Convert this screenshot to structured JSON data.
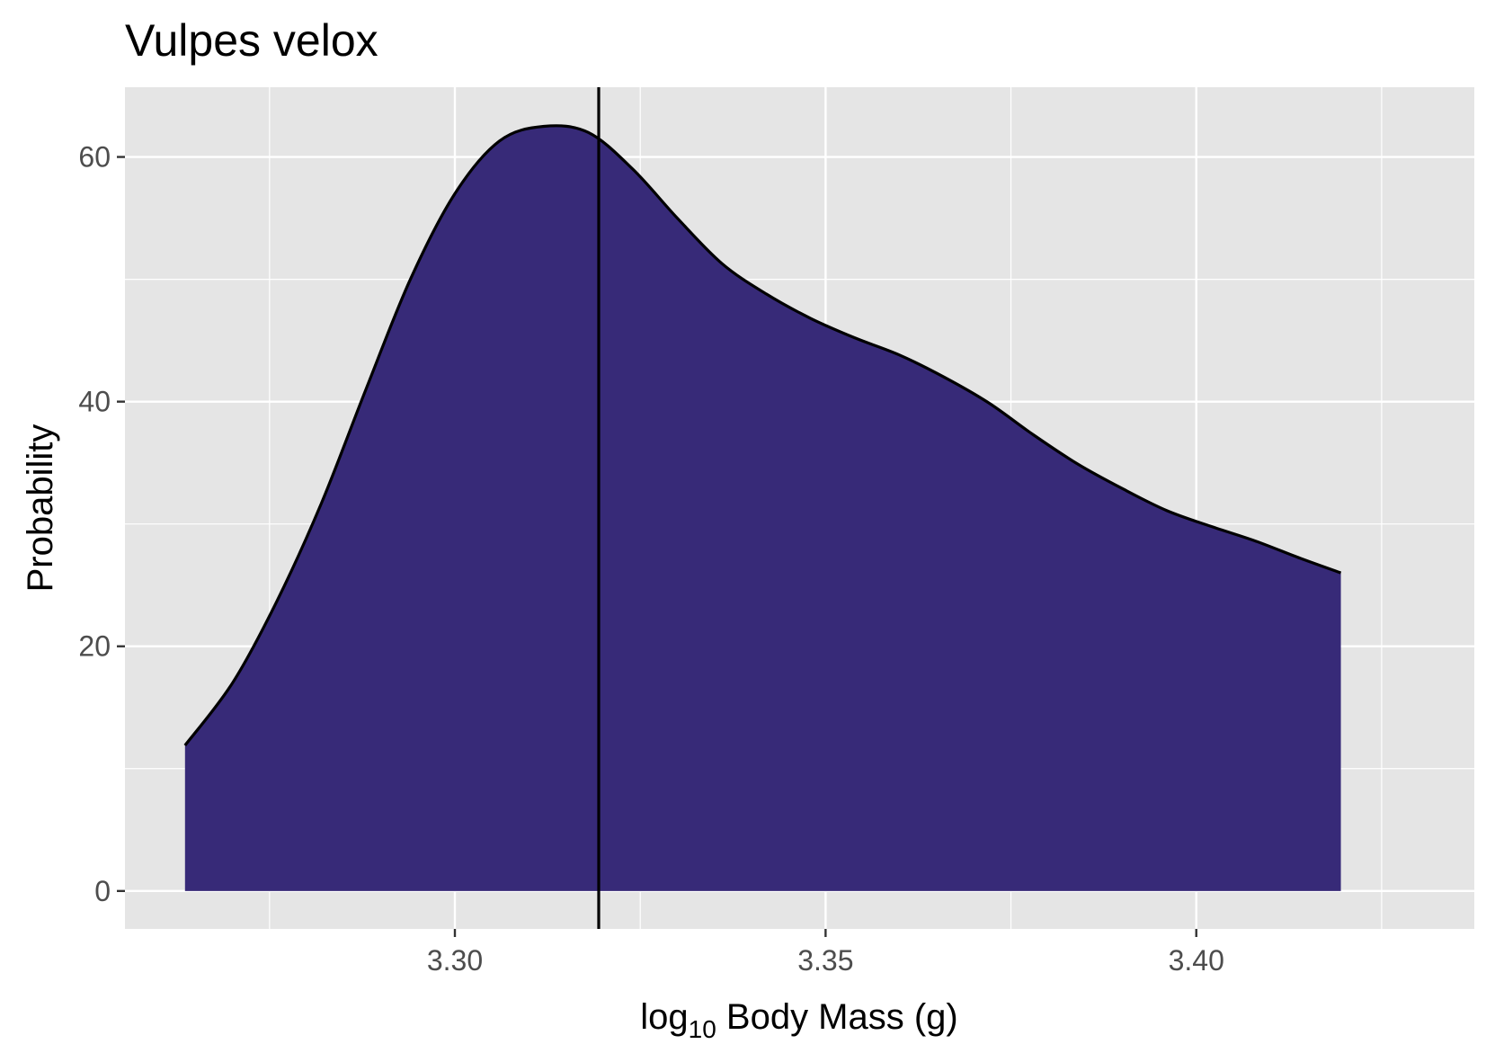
{
  "chart_data": {
    "type": "area",
    "title": "Vulpes velox",
    "xlabel": {
      "base": "log",
      "subscript": "10",
      "rest": " Body Mass (g)"
    },
    "ylabel": "Probability",
    "xlim": [
      3.2555,
      3.4375
    ],
    "ylim": [
      -3.1,
      65.7
    ],
    "x_ticks": [
      {
        "value": 3.3,
        "label": "3.30"
      },
      {
        "value": 3.35,
        "label": "3.35"
      },
      {
        "value": 3.4,
        "label": "3.40"
      }
    ],
    "x_minor_ticks": [
      3.275,
      3.325,
      3.375,
      3.425
    ],
    "y_ticks": [
      {
        "value": 0,
        "label": "0"
      },
      {
        "value": 20,
        "label": "20"
      },
      {
        "value": 40,
        "label": "40"
      },
      {
        "value": 60,
        "label": "60"
      }
    ],
    "y_minor_ticks": [
      10,
      30,
      50
    ],
    "grid": true,
    "series": [
      {
        "name": "density",
        "fill": "#372A78",
        "x": [
          3.2636,
          3.27,
          3.276,
          3.282,
          3.288,
          3.294,
          3.3,
          3.306,
          3.312,
          3.318,
          3.324,
          3.33,
          3.336,
          3.342,
          3.348,
          3.354,
          3.36,
          3.366,
          3.372,
          3.378,
          3.384,
          3.39,
          3.396,
          3.402,
          3.408,
          3.414,
          3.4195
        ],
        "y": [
          11.9,
          17.0,
          23.7,
          31.7,
          41.0,
          50.0,
          57.0,
          61.3,
          62.5,
          62.0,
          59.0,
          55.0,
          51.3,
          48.8,
          46.8,
          45.2,
          43.8,
          42.0,
          39.9,
          37.3,
          34.9,
          32.9,
          31.1,
          29.8,
          28.6,
          27.2,
          26.0
        ]
      }
    ],
    "vline": {
      "x": 3.3194,
      "color": "#000000"
    }
  },
  "colors": {
    "panel_background": "#E5E5E5",
    "grid_line": "#FFFFFF",
    "fill": "#372A78",
    "outline": "#000000",
    "tick_mark": "#333333"
  }
}
